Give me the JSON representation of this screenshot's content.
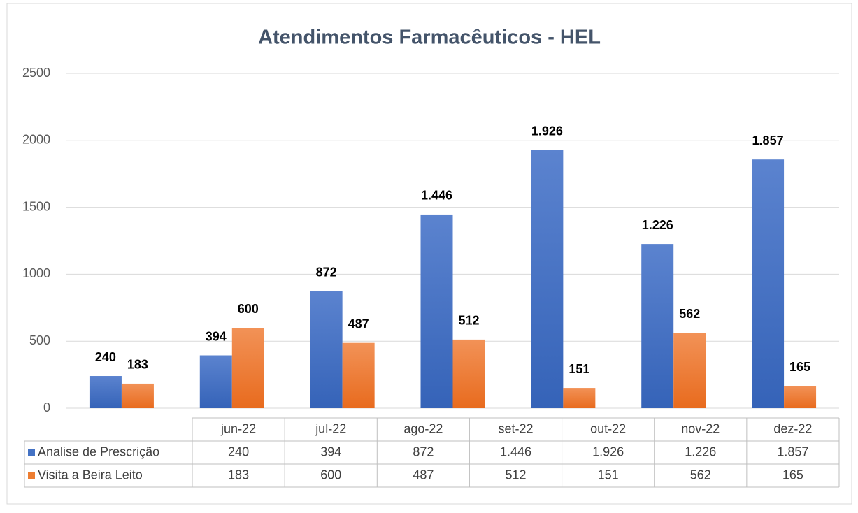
{
  "chart_data": {
    "type": "bar",
    "title": "Atendimentos Farmacêuticos - HEL",
    "categories": [
      "jun-22",
      "jul-22",
      "ago-22",
      "set-22",
      "out-22",
      "nov-22",
      "dez-22"
    ],
    "series": [
      {
        "name": "Analise de Prescrição",
        "color": "#4472c4",
        "values": [
          240,
          394,
          872,
          1446,
          1926,
          1226,
          1857
        ],
        "value_labels": [
          "240",
          "394",
          "872",
          "1.446",
          "1.926",
          "1.226",
          "1.857"
        ]
      },
      {
        "name": "Visita a Beira Leito",
        "color": "#ed7d31",
        "values": [
          183,
          600,
          487,
          512,
          151,
          562,
          165
        ],
        "value_labels": [
          "183",
          "600",
          "487",
          "512",
          "151",
          "562",
          "165"
        ]
      }
    ],
    "ylim": [
      0,
      2500
    ],
    "yticks": [
      0,
      500,
      1000,
      1500,
      2000,
      2500
    ],
    "grid": true,
    "data_table": true
  }
}
